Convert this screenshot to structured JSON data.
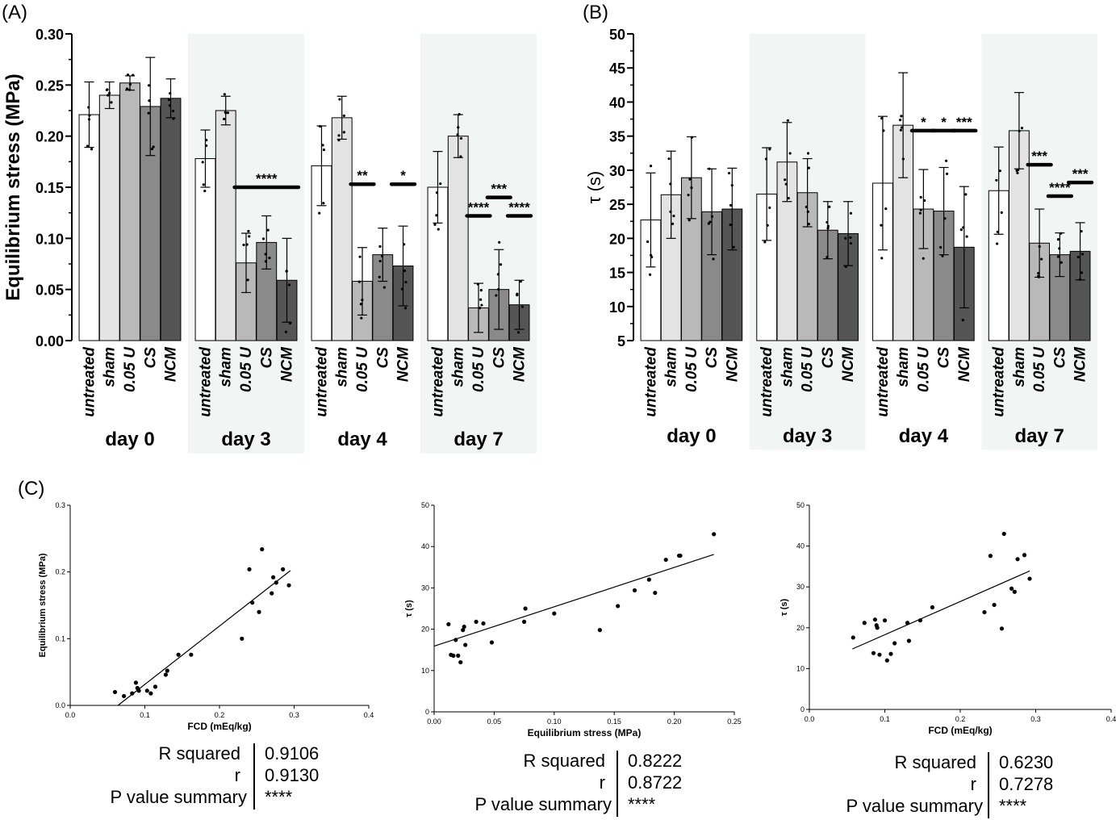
{
  "panels": {
    "a": "(A)",
    "b": "(B)",
    "c": "(C)"
  },
  "colors": {
    "untreated": "#ffffff",
    "sham": "#e3e3e3",
    "u005": "#b9b9b9",
    "cs": "#8a8a8a",
    "ncm": "#555555",
    "shade": "#f1f5f3"
  },
  "stats": [
    {
      "r2_label": "R squared",
      "r2": "0.9106",
      "r_label": "r",
      "r": "0.9130",
      "p_label": "P value summary",
      "p": "****"
    },
    {
      "r2_label": "R squared",
      "r2": "0.8222",
      "r_label": "r",
      "r": "0.8722",
      "p_label": "P value summary",
      "p": "****"
    },
    {
      "r2_label": "R squared",
      "r2": "0.6230",
      "r_label": "r",
      "r": "0.7278",
      "p_label": "P value summary",
      "p": "****"
    }
  ],
  "chart_data": [
    {
      "type": "bar",
      "ylabel": "Equilibrium stress (MPa)",
      "ylim": [
        0,
        0.3
      ],
      "yticks": [
        "0.00",
        "0.05",
        "0.10",
        "0.15",
        "0.20",
        "0.25",
        "0.30"
      ],
      "categories": [
        "untreated",
        "sham",
        "0.05 U",
        "CS",
        "NCM"
      ],
      "groups": [
        {
          "label": "day 0",
          "shaded": false,
          "values": [
            0.221,
            0.24,
            0.252,
            0.229,
            0.237
          ],
          "errors": [
            0.032,
            0.013,
            0.007,
            0.048,
            0.019
          ],
          "sig": []
        },
        {
          "label": "day 3",
          "shaded": true,
          "values": [
            0.178,
            0.225,
            0.076,
            0.096,
            0.059
          ],
          "errors": [
            0.028,
            0.014,
            0.029,
            0.026,
            0.041
          ],
          "sig": [
            {
              "text": "****",
              "from": 2,
              "to": 4,
              "level": 0.15
            }
          ]
        },
        {
          "label": "day 4",
          "shaded": false,
          "values": [
            0.171,
            0.218,
            0.058,
            0.084,
            0.073
          ],
          "errors": [
            0.039,
            0.021,
            0.033,
            0.026,
            0.039
          ],
          "sig": [
            {
              "text": "**",
              "from": 2,
              "to": 2,
              "level": 0.153
            },
            {
              "text": "*",
              "from": 4,
              "to": 4,
              "level": 0.153
            }
          ]
        },
        {
          "label": "day 7",
          "shaded": true,
          "values": [
            0.15,
            0.2,
            0.032,
            0.05,
            0.035
          ],
          "errors": [
            0.035,
            0.021,
            0.024,
            0.039,
            0.024
          ],
          "sig": [
            {
              "text": "****",
              "from": 2,
              "to": 2,
              "level": 0.122
            },
            {
              "text": "***",
              "from": 3,
              "to": 3,
              "level": 0.14
            },
            {
              "text": "****",
              "from": 4,
              "to": 4,
              "level": 0.122
            }
          ]
        }
      ]
    },
    {
      "type": "bar",
      "ylabel": "τ (s)",
      "ylim": [
        5,
        50
      ],
      "yticks": [
        "5",
        "10",
        "15",
        "20",
        "25",
        "30",
        "35",
        "40",
        "45",
        "50"
      ],
      "categories": [
        "untreated",
        "sham",
        "0.05 U",
        "CS",
        "NCM"
      ],
      "groups": [
        {
          "label": "day 0",
          "shaded": false,
          "values": [
            22.7,
            26.4,
            28.9,
            23.9,
            24.3
          ],
          "errors": [
            6.9,
            6.4,
            6.0,
            6.3,
            6.0
          ],
          "sig": []
        },
        {
          "label": "day 3",
          "shaded": true,
          "values": [
            26.5,
            31.2,
            26.7,
            21.2,
            20.7
          ],
          "errors": [
            6.8,
            5.8,
            5.0,
            4.2,
            4.7
          ],
          "sig": []
        },
        {
          "label": "day 4",
          "shaded": false,
          "values": [
            28.1,
            36.6,
            24.3,
            24.0,
            18.7
          ],
          "errors": [
            9.8,
            7.7,
            5.8,
            6.4,
            8.9
          ],
          "sig": [
            {
              "text": "*",
              "from": 2,
              "to": 2,
              "level": 35.8
            },
            {
              "text": "*",
              "from": 3,
              "to": 3,
              "level": 35.8
            },
            {
              "text": "***",
              "from": 4,
              "to": 4,
              "level": 35.8
            }
          ]
        },
        {
          "label": "day 7",
          "shaded": true,
          "values": [
            27.0,
            35.8,
            19.3,
            17.6,
            18.1
          ],
          "errors": [
            6.4,
            5.6,
            5.0,
            3.2,
            4.2
          ],
          "sig": [
            {
              "text": "***",
              "from": 2,
              "to": 2,
              "level": 30.8
            },
            {
              "text": "****",
              "from": 3,
              "to": 3,
              "level": 26.2
            },
            {
              "text": "***",
              "from": 4,
              "to": 4,
              "level": 28.2
            }
          ]
        }
      ]
    },
    {
      "type": "scatter",
      "xlabel": "FCD (mEq/kg)",
      "ylabel": "Equilibrium stress (MPa)",
      "xlim": [
        0,
        0.4
      ],
      "ylim": [
        0,
        0.3
      ],
      "xticks": [
        "0.0",
        "0.1",
        "0.2",
        "0.3",
        "0.4"
      ],
      "yticks": [
        "0.0",
        "0.1",
        "0.2",
        "0.3"
      ],
      "points": [
        [
          0.06,
          0.02
        ],
        [
          0.072,
          0.014
        ],
        [
          0.083,
          0.018
        ],
        [
          0.088,
          0.034
        ],
        [
          0.09,
          0.026
        ],
        [
          0.092,
          0.022
        ],
        [
          0.103,
          0.022
        ],
        [
          0.108,
          0.018
        ],
        [
          0.114,
          0.028
        ],
        [
          0.128,
          0.046
        ],
        [
          0.13,
          0.052
        ],
        [
          0.145,
          0.076
        ],
        [
          0.162,
          0.076
        ],
        [
          0.23,
          0.1
        ],
        [
          0.24,
          0.204
        ],
        [
          0.244,
          0.154
        ],
        [
          0.253,
          0.14
        ],
        [
          0.257,
          0.234
        ],
        [
          0.27,
          0.168
        ],
        [
          0.272,
          0.192
        ],
        [
          0.276,
          0.184
        ],
        [
          0.285,
          0.204
        ],
        [
          0.293,
          0.18
        ]
      ],
      "fit": [
        [
          0.064,
          0.0
        ],
        [
          0.295,
          0.202
        ]
      ]
    },
    {
      "type": "scatter",
      "xlabel": "Equilibrium stress (MPa)",
      "ylabel": "τ (s)",
      "xlim": [
        0,
        0.25
      ],
      "ylim": [
        0,
        50
      ],
      "xticks": [
        "0.00",
        "0.05",
        "0.10",
        "0.15",
        "0.20",
        "0.25"
      ],
      "yticks": [
        "0",
        "10",
        "20",
        "30",
        "40",
        "50"
      ],
      "points": [
        [
          0.012,
          21.2
        ],
        [
          0.014,
          13.8
        ],
        [
          0.016,
          13.6
        ],
        [
          0.018,
          17.4
        ],
        [
          0.02,
          13.6
        ],
        [
          0.022,
          12.0
        ],
        [
          0.024,
          19.8
        ],
        [
          0.025,
          20.6
        ],
        [
          0.026,
          16.2
        ],
        [
          0.035,
          21.8
        ],
        [
          0.041,
          21.4
        ],
        [
          0.048,
          16.8
        ],
        [
          0.075,
          21.8
        ],
        [
          0.076,
          25.0
        ],
        [
          0.1,
          23.8
        ],
        [
          0.138,
          19.8
        ],
        [
          0.153,
          25.6
        ],
        [
          0.167,
          29.4
        ],
        [
          0.179,
          32.0
        ],
        [
          0.184,
          28.8
        ],
        [
          0.193,
          36.8
        ],
        [
          0.204,
          37.8
        ],
        [
          0.205,
          37.8
        ],
        [
          0.233,
          43.0
        ]
      ],
      "fit": [
        [
          0.0,
          15.9
        ],
        [
          0.233,
          38.1
        ]
      ]
    },
    {
      "type": "scatter",
      "xlabel": "FCD (mEq/kg)",
      "ylabel": "τ (s)",
      "xlim": [
        0,
        0.4
      ],
      "ylim": [
        0,
        50
      ],
      "xticks": [
        "0.0",
        "0.1",
        "0.2",
        "0.3",
        "0.4"
      ],
      "yticks": [
        "0",
        "10",
        "20",
        "30",
        "40",
        "50"
      ],
      "points": [
        [
          0.058,
          17.6
        ],
        [
          0.073,
          21.2
        ],
        [
          0.085,
          13.8
        ],
        [
          0.087,
          22.0
        ],
        [
          0.089,
          20.6
        ],
        [
          0.09,
          20.0
        ],
        [
          0.093,
          13.4
        ],
        [
          0.1,
          21.8
        ],
        [
          0.103,
          12.0
        ],
        [
          0.108,
          13.6
        ],
        [
          0.113,
          16.2
        ],
        [
          0.13,
          21.2
        ],
        [
          0.132,
          16.8
        ],
        [
          0.147,
          21.8
        ],
        [
          0.163,
          25.0
        ],
        [
          0.232,
          23.8
        ],
        [
          0.24,
          37.6
        ],
        [
          0.245,
          25.6
        ],
        [
          0.255,
          19.8
        ],
        [
          0.258,
          43.0
        ],
        [
          0.268,
          29.6
        ],
        [
          0.272,
          28.8
        ],
        [
          0.276,
          36.8
        ],
        [
          0.285,
          37.8
        ],
        [
          0.292,
          32.0
        ]
      ],
      "fit": [
        [
          0.057,
          14.8
        ],
        [
          0.292,
          33.9
        ]
      ]
    }
  ]
}
